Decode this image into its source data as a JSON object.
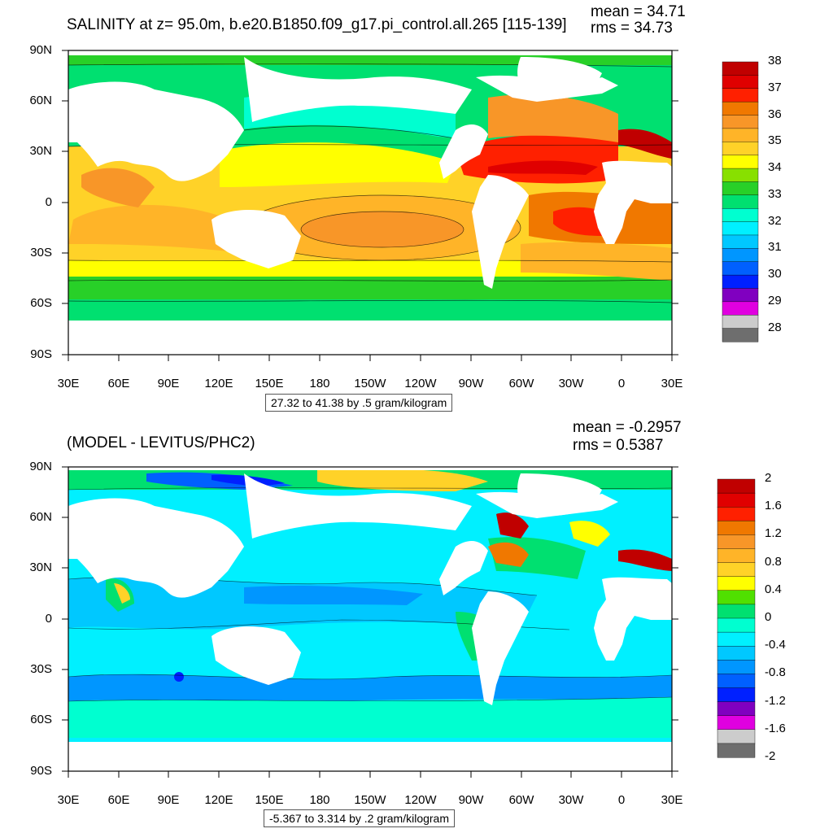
{
  "top": {
    "title": "SALINITY at z=  95.0m, b.e20.B1850.f09_g17.pi_control.all.265 [115-139]",
    "mean_text": "mean = 34.71",
    "rms_text": "rms = 34.73",
    "range_text": "27.32 to 41.38 by .5 gram/kilogram",
    "colorbar": {
      "labels": [
        "38",
        "37",
        "36",
        "35",
        "34",
        "33",
        "32",
        "31",
        "30",
        "29",
        "28"
      ],
      "colors": [
        "#c00000",
        "#e00000",
        "#ff2000",
        "#f07800",
        "#f89628",
        "#ffb428",
        "#ffd228",
        "#ffff00",
        "#88e000",
        "#28d028",
        "#00e070",
        "#00ffd0",
        "#00f0ff",
        "#00c8ff",
        "#0096ff",
        "#0060ff",
        "#0020ff",
        "#8000c0",
        "#e000e0",
        "#cccccc",
        "#6e6e6e"
      ]
    }
  },
  "bottom": {
    "title": "(MODEL - LEVITUS/PHC2)",
    "mean_text": "mean = -0.2957",
    "rms_text": "rms = 0.5387",
    "range_text": "-5.367 to 3.314 by .2 gram/kilogram",
    "colorbar": {
      "labels": [
        "2",
        "1.6",
        "1.2",
        "0.8",
        "0.4",
        "0",
        "-0.4",
        "-0.8",
        "-1.2",
        "-1.6",
        "-2"
      ],
      "colors": [
        "#c00000",
        "#e00000",
        "#ff2000",
        "#f07800",
        "#f89628",
        "#ffb428",
        "#ffd228",
        "#ffff00",
        "#50e000",
        "#00e070",
        "#00ffd0",
        "#00f0ff",
        "#00c8ff",
        "#0096ff",
        "#0060ff",
        "#0020ff",
        "#8000c0",
        "#e000e0",
        "#cccccc",
        "#6e6e6e"
      ]
    }
  },
  "axes": {
    "lat_labels": [
      "90N",
      "60N",
      "30N",
      "0",
      "30S",
      "60S",
      "90S"
    ],
    "lon_labels": [
      "30E",
      "60E",
      "90E",
      "120E",
      "150E",
      "180",
      "150W",
      "120W",
      "90W",
      "60W",
      "30W",
      "0",
      "30E"
    ]
  },
  "colors": {
    "land": "#ffffff",
    "frame": "#000000"
  }
}
